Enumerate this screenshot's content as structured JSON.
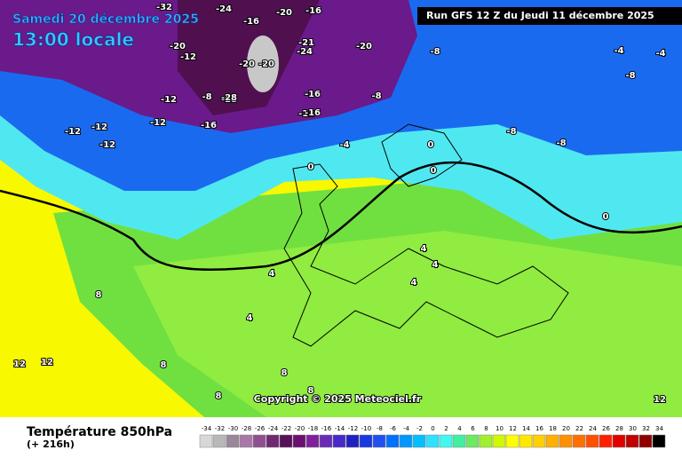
{
  "header": {
    "date": "Samedi 20 décembre 2025",
    "time": "13:00 locale",
    "run": "Run GFS 12 Z du Jeudi 11 décembre 2025"
  },
  "map": {
    "copyright": "Copyright © 2025 Meteociel.fr",
    "contour_labels": [
      "-32",
      "-24",
      "-20",
      "-16",
      "-20",
      "-12",
      "-16",
      "-20",
      "-21",
      "-24",
      "-20",
      "-28",
      "-20",
      "-12",
      "-8",
      "-28",
      "-16",
      "-12",
      "-12",
      "-12",
      "-12",
      "-16",
      "-16",
      "-12",
      "-8",
      "-4",
      "-8",
      "-8",
      "-8",
      "-8",
      "-4",
      "-4",
      "0",
      "0",
      "0",
      "0",
      "4",
      "4",
      "4",
      "4",
      "4",
      "8",
      "8",
      "8",
      "8",
      "12",
      "12",
      "8",
      "12"
    ]
  },
  "footer": {
    "title": "Température 850hPa",
    "subtitle": "(+ 216h)",
    "scale": {
      "labels": [
        -34,
        -32,
        -30,
        -28,
        -26,
        -24,
        -22,
        -20,
        -18,
        -16,
        -14,
        -12,
        -10,
        -8,
        -6,
        -4,
        -2,
        0,
        2,
        4,
        6,
        8,
        10,
        12,
        14,
        16,
        18,
        20,
        22,
        24,
        26,
        28,
        30,
        32,
        34
      ],
      "colors": [
        "#d8d8d8",
        "#b8b8b8",
        "#988898",
        "#a878a8",
        "#905090",
        "#702870",
        "#581058",
        "#6a1070",
        "#80209a",
        "#6a2ab8",
        "#4828c8",
        "#2020c0",
        "#1838e0",
        "#2050f0",
        "#0070ff",
        "#0098ff",
        "#00c0ff",
        "#30e0ff",
        "#40f8f0",
        "#40f0a0",
        "#70e860",
        "#a0f030",
        "#d0f800",
        "#ffff00",
        "#ffe800",
        "#ffd000",
        "#ffb000",
        "#ff9000",
        "#ff7000",
        "#ff5000",
        "#ff2000",
        "#e00000",
        "#c00000",
        "#900000",
        "#000000"
      ]
    }
  }
}
